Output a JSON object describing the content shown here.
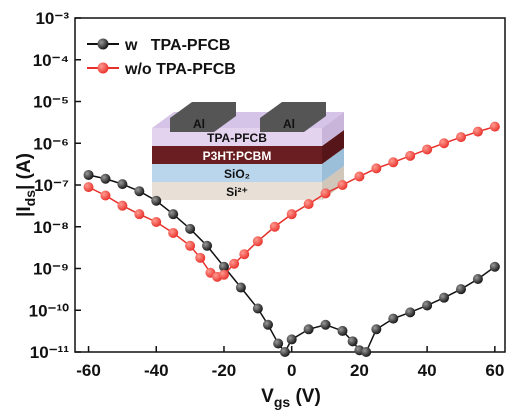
{
  "chart_data": {
    "type": "scatter",
    "xlabel": {
      "text": "V",
      "sub": "gs",
      "unit": " (V)"
    },
    "ylabel": {
      "text": "|I",
      "sub": "ds",
      "unit": "| (A)"
    },
    "xlim": [
      -64,
      63
    ],
    "xticks": [
      -60,
      -40,
      -20,
      0,
      20,
      40,
      60
    ],
    "ylim": [
      1e-11,
      0.001
    ],
    "log_y": true,
    "yticks": [
      {
        "value": 1e-11,
        "label": "10⁻¹¹"
      },
      {
        "value": 1e-10,
        "label": "10⁻¹⁰"
      },
      {
        "value": 1e-09,
        "label": "10⁻⁹"
      },
      {
        "value": 1e-08,
        "label": "10⁻⁸"
      },
      {
        "value": 1e-07,
        "label": "10⁻⁷"
      },
      {
        "value": 1e-06,
        "label": "10⁻⁶"
      },
      {
        "value": 1e-05,
        "label": "10⁻⁵"
      },
      {
        "value": 0.0001,
        "label": "10⁻⁴"
      },
      {
        "value": 0.001,
        "label": "10⁻³"
      }
    ],
    "legend": "upper left",
    "series": [
      {
        "name": "w   TPA-PFCB",
        "color": "#111111",
        "x": [
          -60,
          -55,
          -50,
          -45,
          -40,
          -35,
          -30,
          -25,
          -20,
          -15,
          -10,
          -7,
          -4,
          -2,
          0,
          5,
          10,
          15,
          18,
          20,
          22,
          25,
          30,
          35,
          40,
          45,
          50,
          55,
          60
        ],
        "values": [
          1.74e-07,
          1.41e-07,
          1.05e-07,
          7.1e-08,
          4.2e-08,
          2e-08,
          8.9e-09,
          3.5e-09,
          1.1e-09,
          3.5e-10,
          1.1e-10,
          4.5e-11,
          1.6e-11,
          1e-11,
          2e-11,
          3.5e-11,
          4.5e-11,
          3.2e-11,
          1.8e-11,
          1.1e-11,
          1e-11,
          3.5e-11,
          6.3e-11,
          8.9e-11,
          1.3e-10,
          2e-10,
          3.2e-10,
          5.6e-10,
          1.1e-09
        ]
      },
      {
        "name": "w/o TPA-PFCB",
        "color": "#e8302a",
        "x": [
          -60,
          -55,
          -50,
          -45,
          -40,
          -35,
          -30,
          -27,
          -24,
          -22,
          -20,
          -17,
          -14,
          -10,
          -5,
          0,
          5,
          10,
          15,
          20,
          25,
          30,
          35,
          40,
          45,
          50,
          55,
          60
        ],
        "values": [
          8.9e-08,
          5.6e-08,
          3.2e-08,
          2e-08,
          1.3e-08,
          7.1e-09,
          3.5e-09,
          1.8e-09,
          7.9e-10,
          6.3e-10,
          7.1e-10,
          1.3e-09,
          2.2e-09,
          4.5e-09,
          1e-08,
          2e-08,
          3.5e-08,
          6.3e-08,
          1e-07,
          1.6e-07,
          2.5e-07,
          3.5e-07,
          5e-07,
          7.1e-07,
          1e-06,
          1.4e-06,
          1.9e-06,
          2.5e-06
        ]
      }
    ],
    "inset": {
      "electrodes": [
        "Al",
        "Al"
      ],
      "layers": [
        "TPA-PFCB",
        "P3HT:PCBM",
        "SiO₂",
        "Si²⁺"
      ]
    }
  }
}
